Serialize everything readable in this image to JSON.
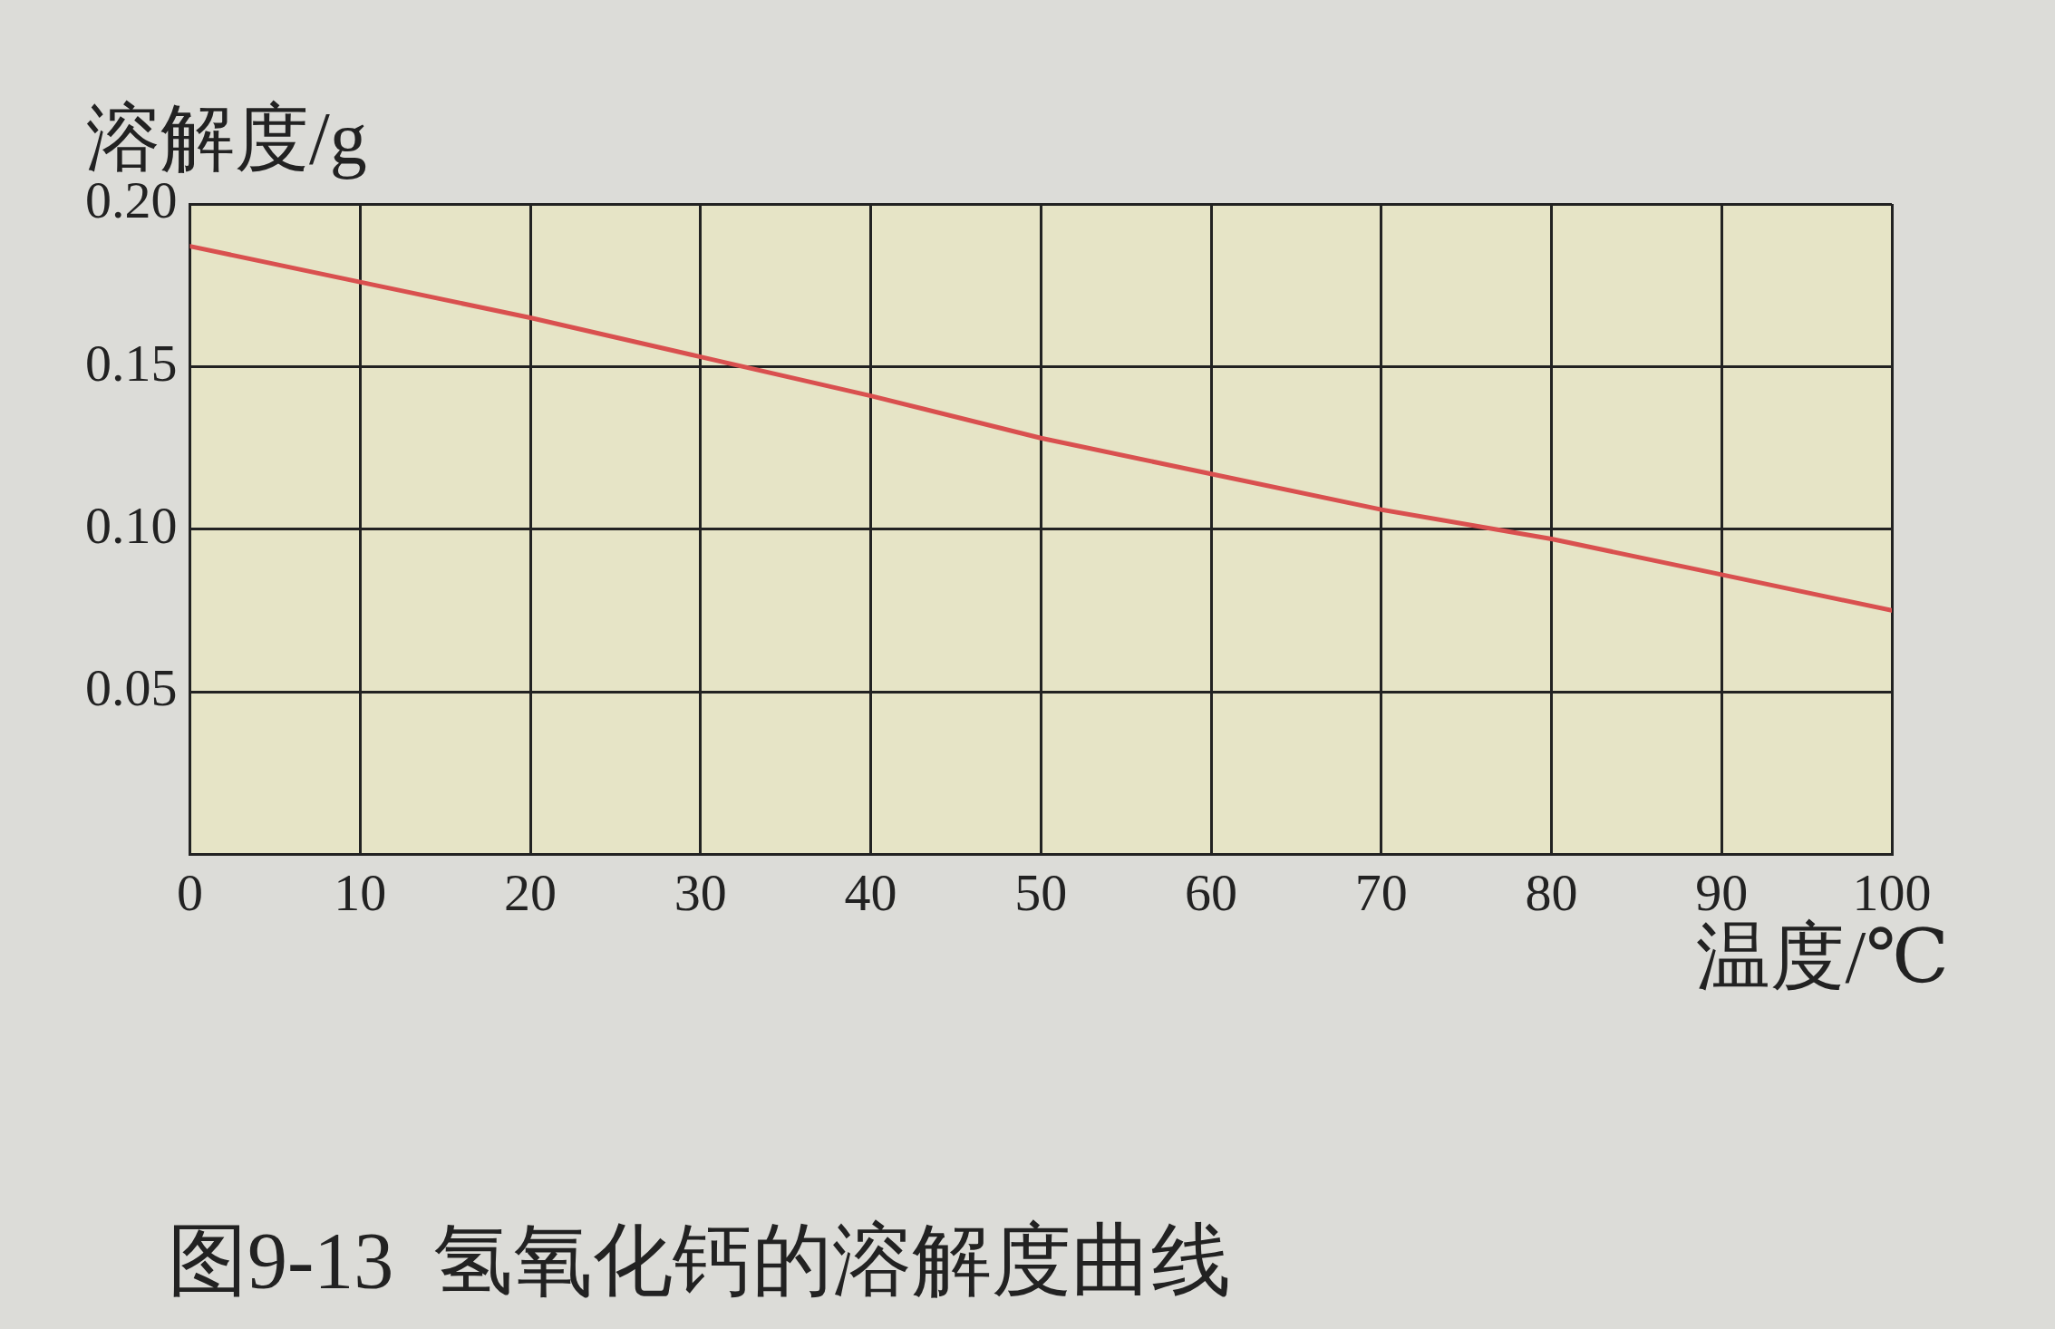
{
  "chart_data": {
    "type": "line",
    "title": "图9-13  氢氧化钙的溶解度曲线",
    "xlabel": "温度/℃",
    "ylabel": "溶解度/g",
    "x": [
      0,
      10,
      20,
      30,
      40,
      50,
      60,
      70,
      80,
      90,
      100
    ],
    "series": [
      {
        "color": "#d9504f",
        "values": [
          0.187,
          0.176,
          0.165,
          0.153,
          0.141,
          0.128,
          0.117,
          0.106,
          0.097,
          0.086,
          0.075
        ]
      }
    ],
    "xlim": [
      0,
      100
    ],
    "xticks": [
      0,
      10,
      20,
      30,
      40,
      50,
      60,
      70,
      80,
      90,
      100
    ],
    "ylim": [
      0,
      0.2
    ],
    "yticks": [
      0.05,
      {
        "value": 0.1,
        "label": "0.10"
      },
      0.15,
      {
        "value": 0.2,
        "label": "0.20"
      }
    ],
    "grid": true,
    "legend": false,
    "marker": "none",
    "line_style": "solid"
  }
}
